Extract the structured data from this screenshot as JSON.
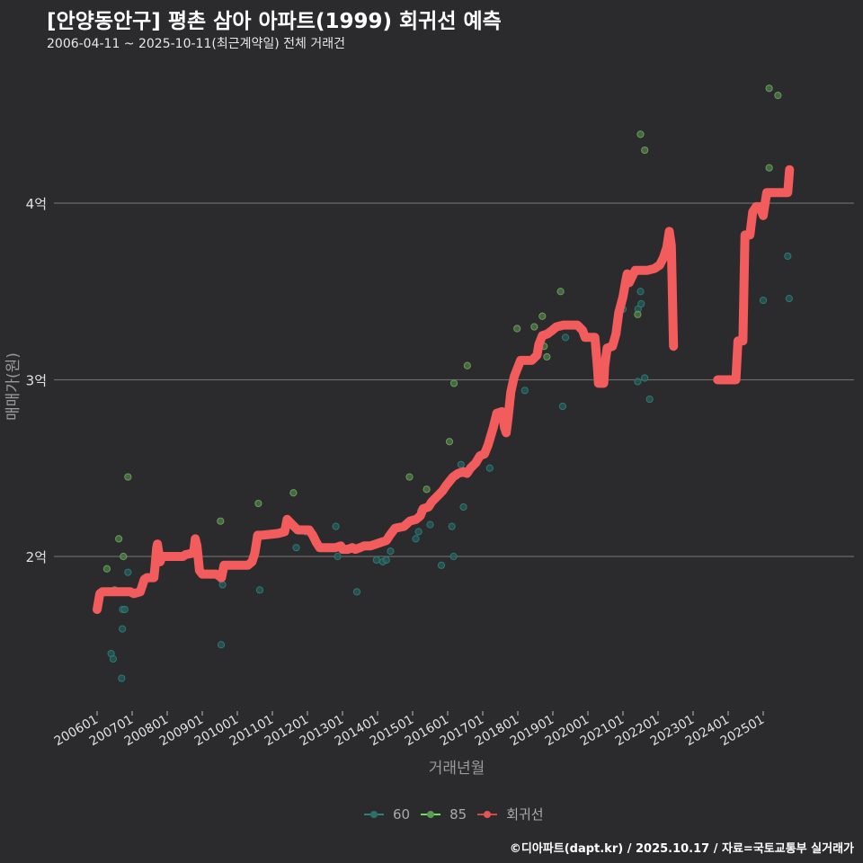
{
  "header": {
    "title": "[안양동안구] 평촌 삼아 아파트(1999) 회귀선 예측",
    "subtitle": "2006-04-11 ~ 2025-10-11(최근계약일) 전체 거래건"
  },
  "footer": "©디아파트(dapt.kr) / 2025.10.17 / 자료=국토교통부 실거래가",
  "legend": [
    {
      "label": "60",
      "color": "#2f7f7a"
    },
    {
      "label": "85",
      "color": "#6fbf5a"
    },
    {
      "label": "회귀선",
      "color": "#f25c5c"
    }
  ],
  "chart_data": {
    "type": "scatter",
    "title": "[안양동안구] 평촌 삼아 아파트(1999) 회귀선 예측",
    "subtitle": "2006-04-11 ~ 2025-10-11(최근계약일) 전체 거래건",
    "xlabel": "거래년월",
    "ylabel": "매매가(원)",
    "x_ticks": [
      "200601",
      "200701",
      "200801",
      "200901",
      "201001",
      "201101",
      "201201",
      "201301",
      "201401",
      "201501",
      "201601",
      "201701",
      "201801",
      "201901",
      "202001",
      "202101",
      "202201",
      "202301",
      "202401",
      "202501"
    ],
    "y_ticks": [
      {
        "value": 2,
        "label": "2억"
      },
      {
        "value": 3,
        "label": "3억"
      },
      {
        "value": 4,
        "label": "4억"
      }
    ],
    "xlim": [
      2005.6,
      2026.0
    ],
    "ylim": [
      1.15,
      4.8
    ],
    "grid": "horizontal major only",
    "legend_position": "bottom",
    "series": [
      {
        "name": "60",
        "color": "#2f7f7a",
        "points": [
          [
            2006.4,
            1.45
          ],
          [
            2006.46,
            1.42
          ],
          [
            2006.72,
            1.59
          ],
          [
            2006.73,
            1.7
          ],
          [
            2006.79,
            1.7
          ],
          [
            2006.7,
            1.31
          ],
          [
            2006.88,
            1.91
          ],
          [
            2009.54,
            1.87
          ],
          [
            2009.58,
            1.84
          ],
          [
            2009.54,
            1.5
          ],
          [
            2010.64,
            1.81
          ],
          [
            2011.68,
            2.05
          ],
          [
            2011.95,
            2.14
          ],
          [
            2012.81,
            2.17
          ],
          [
            2012.86,
            2.0
          ],
          [
            2013.41,
            1.8
          ],
          [
            2013.97,
            1.98
          ],
          [
            2014.15,
            1.97
          ],
          [
            2014.25,
            1.98
          ],
          [
            2014.37,
            2.03
          ],
          [
            2015.09,
            2.1
          ],
          [
            2015.17,
            2.14
          ],
          [
            2015.24,
            2.26
          ],
          [
            2015.5,
            2.18
          ],
          [
            2015.82,
            1.95
          ],
          [
            2016.17,
            2.0
          ],
          [
            2016.12,
            2.17
          ],
          [
            2016.38,
            2.52
          ],
          [
            2016.45,
            2.28
          ],
          [
            2017.2,
            2.5
          ],
          [
            2018.2,
            2.94
          ],
          [
            2019.28,
            2.85
          ],
          [
            2019.36,
            3.24
          ],
          [
            2021.42,
            2.99
          ],
          [
            2021.0,
            3.4
          ],
          [
            2021.43,
            3.4
          ],
          [
            2021.5,
            3.5
          ],
          [
            2021.52,
            3.43
          ],
          [
            2021.62,
            3.01
          ],
          [
            2021.76,
            2.89
          ],
          [
            2025.0,
            3.45
          ],
          [
            2025.7,
            3.7
          ],
          [
            2025.74,
            3.46
          ]
        ]
      },
      {
        "name": "85",
        "color": "#6fbf5a",
        "points": [
          [
            2006.28,
            1.93
          ],
          [
            2006.62,
            2.1
          ],
          [
            2006.75,
            2.0
          ],
          [
            2006.88,
            2.45
          ],
          [
            2006.5,
            1.81
          ],
          [
            2009.52,
            2.2
          ],
          [
            2010.6,
            2.3
          ],
          [
            2011.6,
            2.36
          ],
          [
            2014.91,
            2.45
          ],
          [
            2015.4,
            2.38
          ],
          [
            2016.05,
            2.65
          ],
          [
            2016.18,
            2.98
          ],
          [
            2016.56,
            3.08
          ],
          [
            2017.98,
            3.29
          ],
          [
            2018.7,
            3.36
          ],
          [
            2018.75,
            3.19
          ],
          [
            2018.83,
            3.13
          ],
          [
            2019.22,
            3.5
          ],
          [
            2018.47,
            3.3
          ],
          [
            2021.42,
            3.37
          ],
          [
            2021.5,
            4.39
          ],
          [
            2021.62,
            4.3
          ],
          [
            2025.17,
            4.65
          ],
          [
            2025.42,
            4.61
          ],
          [
            2025.17,
            4.2
          ]
        ]
      }
    ],
    "regression": {
      "name": "회귀선",
      "color": "#f25c5c",
      "segments": [
        [
          [
            2006.0,
            1.7
          ],
          [
            2006.08,
            1.79
          ],
          [
            2006.15,
            1.8
          ],
          [
            2006.95,
            1.8
          ],
          [
            2007.05,
            1.79
          ],
          [
            2007.23,
            1.8
          ],
          [
            2007.35,
            1.87
          ],
          [
            2007.42,
            1.88
          ],
          [
            2007.62,
            1.88
          ],
          [
            2007.65,
            1.94
          ],
          [
            2007.7,
            2.05
          ],
          [
            2007.72,
            2.07
          ],
          [
            2007.8,
            1.97
          ],
          [
            2007.85,
            2.0
          ],
          [
            2008.45,
            2.0
          ],
          [
            2008.52,
            2.01
          ],
          [
            2008.75,
            2.02
          ],
          [
            2008.8,
            2.1
          ],
          [
            2008.85,
            2.06
          ],
          [
            2008.92,
            1.92
          ],
          [
            2009.0,
            1.9
          ],
          [
            2009.4,
            1.9
          ],
          [
            2009.55,
            1.88
          ],
          [
            2009.62,
            1.95
          ],
          [
            2009.75,
            1.95
          ],
          [
            2010.3,
            1.95
          ],
          [
            2010.42,
            1.97
          ],
          [
            2010.5,
            2.02
          ],
          [
            2010.58,
            2.12
          ],
          [
            2010.7,
            2.12
          ],
          [
            2011.15,
            2.13
          ],
          [
            2011.35,
            2.14
          ],
          [
            2011.42,
            2.21
          ],
          [
            2011.52,
            2.19
          ],
          [
            2011.62,
            2.17
          ],
          [
            2011.72,
            2.15
          ],
          [
            2012.05,
            2.15
          ],
          [
            2012.15,
            2.12
          ],
          [
            2012.25,
            2.08
          ],
          [
            2012.35,
            2.05
          ],
          [
            2012.55,
            2.05
          ],
          [
            2012.8,
            2.05
          ],
          [
            2012.95,
            2.06
          ],
          [
            2013.0,
            2.04
          ],
          [
            2013.15,
            2.04
          ],
          [
            2013.28,
            2.05
          ],
          [
            2013.37,
            2.04
          ],
          [
            2013.5,
            2.05
          ],
          [
            2013.62,
            2.06
          ],
          [
            2013.8,
            2.06
          ],
          [
            2014.1,
            2.08
          ],
          [
            2014.25,
            2.09
          ],
          [
            2014.35,
            2.12
          ],
          [
            2014.5,
            2.16
          ],
          [
            2014.75,
            2.17
          ],
          [
            2014.92,
            2.2
          ],
          [
            2015.1,
            2.21
          ],
          [
            2015.22,
            2.23
          ],
          [
            2015.3,
            2.27
          ],
          [
            2015.45,
            2.28
          ],
          [
            2015.55,
            2.31
          ],
          [
            2015.7,
            2.34
          ],
          [
            2015.85,
            2.37
          ],
          [
            2015.95,
            2.4
          ],
          [
            2016.15,
            2.45
          ],
          [
            2016.3,
            2.47
          ],
          [
            2016.45,
            2.48
          ],
          [
            2016.55,
            2.47
          ],
          [
            2016.65,
            2.5
          ],
          [
            2016.8,
            2.53
          ],
          [
            2016.92,
            2.57
          ],
          [
            2017.05,
            2.58
          ],
          [
            2017.15,
            2.63
          ],
          [
            2017.3,
            2.73
          ],
          [
            2017.4,
            2.81
          ],
          [
            2017.55,
            2.82
          ],
          [
            2017.62,
            2.73
          ],
          [
            2017.67,
            2.7
          ],
          [
            2017.72,
            2.78
          ],
          [
            2017.8,
            2.93
          ],
          [
            2017.9,
            3.02
          ],
          [
            2018.0,
            3.07
          ],
          [
            2018.08,
            3.11
          ],
          [
            2018.4,
            3.11
          ],
          [
            2018.55,
            3.14
          ],
          [
            2018.6,
            3.2
          ],
          [
            2018.7,
            3.25
          ],
          [
            2018.85,
            3.26
          ],
          [
            2018.98,
            3.28
          ],
          [
            2019.1,
            3.3
          ],
          [
            2019.3,
            3.31
          ],
          [
            2019.7,
            3.31
          ],
          [
            2019.85,
            3.28
          ],
          [
            2019.92,
            3.24
          ],
          [
            2020.2,
            3.24
          ],
          [
            2020.28,
            3.05
          ],
          [
            2020.3,
            2.98
          ],
          [
            2020.45,
            2.98
          ],
          [
            2020.48,
            3.08
          ],
          [
            2020.55,
            3.18
          ],
          [
            2020.7,
            3.19
          ],
          [
            2020.8,
            3.26
          ],
          [
            2020.88,
            3.38
          ],
          [
            2021.0,
            3.47
          ],
          [
            2021.08,
            3.56
          ],
          [
            2021.12,
            3.6
          ],
          [
            2021.18,
            3.55
          ],
          [
            2021.25,
            3.58
          ],
          [
            2021.35,
            3.62
          ],
          [
            2021.7,
            3.62
          ],
          [
            2021.9,
            3.63
          ],
          [
            2022.05,
            3.65
          ],
          [
            2022.15,
            3.69
          ],
          [
            2022.25,
            3.75
          ],
          [
            2022.32,
            3.84
          ],
          [
            2022.38,
            3.76
          ],
          [
            2022.44,
            3.19
          ]
        ],
        [
          [
            2023.7,
            3.0
          ],
          [
            2024.1,
            3.0
          ],
          [
            2024.22,
            3.0
          ],
          [
            2024.28,
            3.22
          ],
          [
            2024.42,
            3.22
          ],
          [
            2024.48,
            3.82
          ],
          [
            2024.62,
            3.82
          ],
          [
            2024.7,
            3.95
          ],
          [
            2024.8,
            3.98
          ],
          [
            2024.9,
            3.98
          ],
          [
            2025.0,
            3.93
          ],
          [
            2025.1,
            4.06
          ],
          [
            2025.5,
            4.06
          ],
          [
            2025.7,
            4.06
          ],
          [
            2025.75,
            4.19
          ]
        ]
      ]
    }
  },
  "axes": {
    "x_title": "거래년월",
    "y_title": "매매가(원)"
  }
}
